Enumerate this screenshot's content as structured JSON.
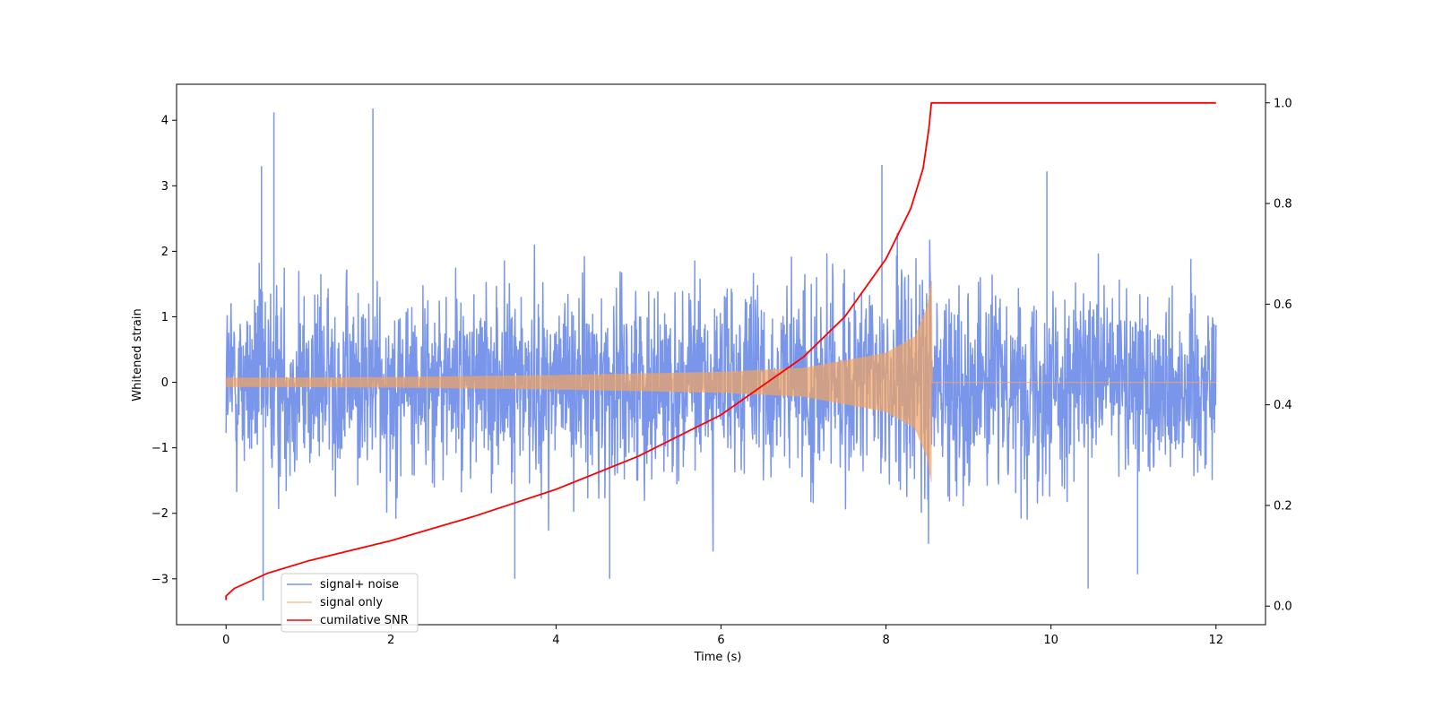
{
  "chart_data": {
    "type": "line",
    "xlabel": "Time (s)",
    "ylabel": "Whitened strain",
    "y2label": "",
    "xlim": [
      -0.6,
      12.6
    ],
    "ylim": [
      -3.7,
      4.55
    ],
    "y2lim": [
      -0.037,
      1.037
    ],
    "xticks": [
      0,
      2,
      4,
      6,
      8,
      10,
      12
    ],
    "yticks": [
      -3,
      -2,
      -1,
      0,
      1,
      2,
      3,
      4
    ],
    "y2ticks": [
      0.0,
      0.2,
      0.4,
      0.6,
      0.8,
      1.0
    ],
    "grid": false,
    "legend_position": "lower-left",
    "merger_time": 8.55,
    "series": [
      {
        "name": "signal+ noise",
        "axis": "left",
        "color": "#4169e1",
        "opacity": 0.7,
        "noise_std": 0.72,
        "peak_spikes": [
          [
            0.58,
            4.12
          ],
          [
            1.78,
            4.18
          ],
          [
            0.43,
            3.3
          ],
          [
            7.95,
            3.32
          ],
          [
            9.95,
            3.22
          ],
          [
            0.45,
            -3.33
          ],
          [
            10.45,
            -3.15
          ],
          [
            3.5,
            -3.0
          ],
          [
            4.65,
            -3.0
          ],
          [
            11.05,
            -2.93
          ]
        ]
      },
      {
        "name": "signal only",
        "axis": "left",
        "color": "#f4a460",
        "opacity": 0.7,
        "envelope": [
          [
            0,
            0.07
          ],
          [
            2,
            0.08
          ],
          [
            4,
            0.11
          ],
          [
            6,
            0.16
          ],
          [
            7,
            0.22
          ],
          [
            8,
            0.45
          ],
          [
            8.35,
            0.7
          ],
          [
            8.5,
            1.15
          ],
          [
            8.55,
            1.55
          ],
          [
            8.56,
            0.0
          ],
          [
            12,
            0.0
          ]
        ]
      },
      {
        "name": "cumilative SNR",
        "axis": "right",
        "color": "#ff0000",
        "points": [
          [
            0,
            0.012
          ],
          [
            0.0,
            0.02
          ],
          [
            0.1,
            0.035
          ],
          [
            0.5,
            0.065
          ],
          [
            1,
            0.09
          ],
          [
            2,
            0.13
          ],
          [
            3,
            0.178
          ],
          [
            4,
            0.232
          ],
          [
            5,
            0.298
          ],
          [
            6,
            0.38
          ],
          [
            7,
            0.495
          ],
          [
            7.5,
            0.575
          ],
          [
            8,
            0.69
          ],
          [
            8.3,
            0.79
          ],
          [
            8.45,
            0.87
          ],
          [
            8.52,
            0.95
          ],
          [
            8.55,
            1.0
          ],
          [
            12,
            1.0
          ]
        ]
      }
    ]
  }
}
